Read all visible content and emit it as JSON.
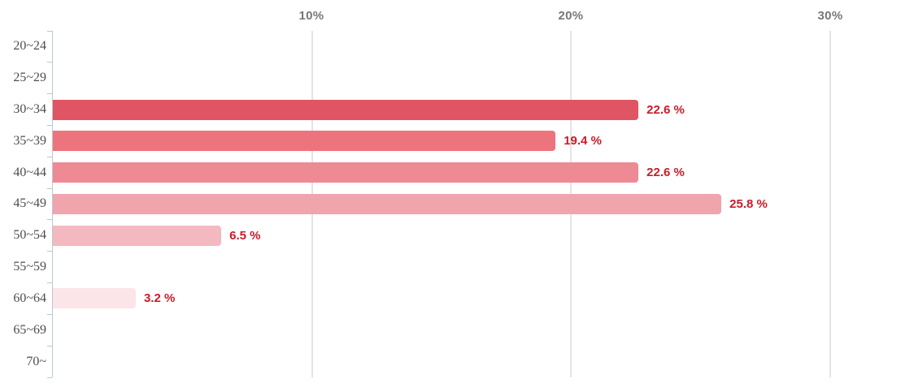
{
  "chart_data": {
    "type": "bar",
    "orientation": "horizontal",
    "title": "",
    "xlabel": "",
    "ylabel": "",
    "categories": [
      "20~24",
      "25~29",
      "30~34",
      "35~39",
      "40~44",
      "45~49",
      "50~54",
      "55~59",
      "60~64",
      "65~69",
      "70~"
    ],
    "values": [
      0,
      0,
      22.6,
      19.4,
      22.6,
      25.8,
      6.5,
      0,
      3.2,
      0,
      0
    ],
    "value_labels": [
      null,
      null,
      "22.6 %",
      "19.4 %",
      "22.6 %",
      "25.8 %",
      "6.5 %",
      null,
      "3.2 %",
      null,
      null
    ],
    "bar_colors": [
      null,
      null,
      "#e05563",
      "#ed737d",
      "#ee8a94",
      "#f0a4ac",
      "#f4b9c0",
      null,
      "#fbe5e8",
      null,
      null
    ],
    "xlim": [
      0,
      30
    ],
    "x_ticks": [
      {
        "value": 10,
        "label": "10%"
      },
      {
        "value": 20,
        "label": "20%"
      },
      {
        "value": 30,
        "label": "30%"
      }
    ],
    "grid": true,
    "legend": false
  },
  "style": {
    "value_label_color": "#cb1b28",
    "x_tick_label_color": "#777777",
    "category_label_color": "#4d4d4d",
    "gridline_color": "#c9c9c9",
    "axis_line_color": "#bac7d3",
    "background": "#ffffff"
  }
}
